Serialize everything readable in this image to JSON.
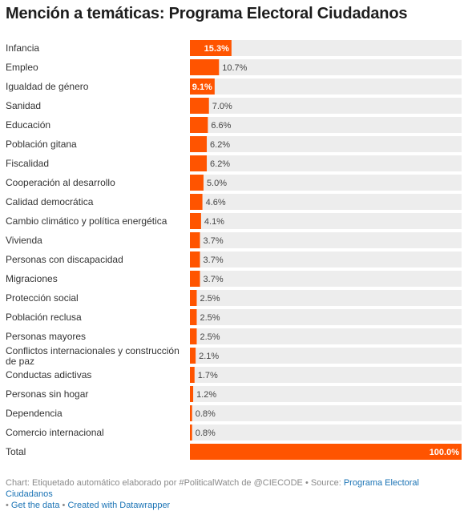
{
  "chart_data": {
    "type": "bar",
    "title": "Mención a temáticas: Programa Electoral Ciudadanos",
    "unit": "%",
    "xlim": [
      0,
      100
    ],
    "colors": {
      "bar": "#ff5400",
      "track": "#ededed"
    },
    "categories": [
      "Infancia",
      "Empleo",
      "Igualdad de género",
      "Sanidad",
      "Educación",
      "Población gitana",
      "Fiscalidad",
      "Cooperación al desarrollo",
      "Calidad democrática",
      "Cambio climático y política energética",
      "Vivienda",
      "Personas con discapacidad",
      "Migraciones",
      "Protección social",
      "Población reclusa",
      "Personas mayores",
      [
        "Conflictos internacionales y construcción",
        "de paz"
      ],
      "Conductas adictivas",
      "Personas sin hogar",
      "Dependencia",
      "Comercio internacional",
      "Total"
    ],
    "values": [
      15.3,
      10.7,
      9.1,
      7.0,
      6.6,
      6.2,
      6.2,
      5.0,
      4.6,
      4.1,
      3.7,
      3.7,
      3.7,
      2.5,
      2.5,
      2.5,
      2.1,
      1.7,
      1.2,
      0.8,
      0.8,
      100.0
    ],
    "value_labels": [
      "15.3%",
      "10.7%",
      "9.1%",
      "7.0%",
      "6.6%",
      "6.2%",
      "6.2%",
      "5.0%",
      "4.6%",
      "4.1%",
      "3.7%",
      "3.7%",
      "3.7%",
      "2.5%",
      "2.5%",
      "2.5%",
      "2.1%",
      "1.7%",
      "1.2%",
      "0.8%",
      "0.8%",
      "100.0%"
    ],
    "label_inside": [
      true,
      false,
      true,
      false,
      false,
      false,
      false,
      false,
      false,
      false,
      false,
      false,
      false,
      false,
      false,
      false,
      false,
      false,
      false,
      false,
      false,
      true
    ]
  },
  "footer": {
    "prefix": "Chart: Etiquetado automático elaborado por #PoliticalWatch de @CIECODE • Source: ",
    "source_link": "Programa Electoral Ciudadanos",
    "sep1": "• ",
    "get_data": "Get the data",
    "sep2": " • ",
    "created_with": "Created with Datawrapper"
  }
}
